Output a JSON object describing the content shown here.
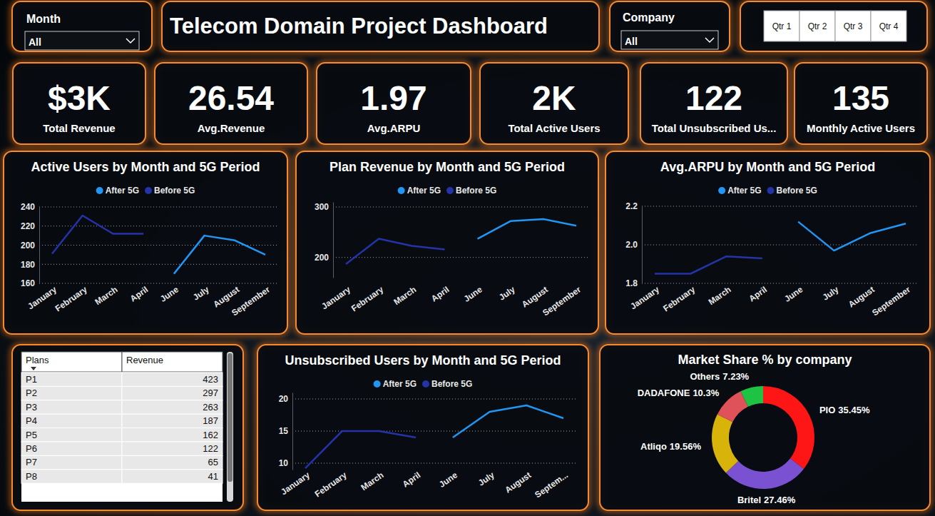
{
  "header": {
    "title": "Telecom Domain Project Dashboard"
  },
  "filters": [
    {
      "label": "Month",
      "value": "All"
    },
    {
      "label": "Company",
      "value": "All"
    }
  ],
  "quarters": [
    "Qtr 1",
    "Qtr 2",
    "Qtr 3",
    "Qtr 4"
  ],
  "kpis": [
    {
      "value": "$3K",
      "label": "Total Revenue"
    },
    {
      "value": "26.54",
      "label": "Avg.Revenue"
    },
    {
      "value": "1.97",
      "label": "Avg.ARPU"
    },
    {
      "value": "2K",
      "label": "Total Active Users"
    },
    {
      "value": "122",
      "label": "Total Unsubscribed Us..."
    },
    {
      "value": "135",
      "label": "Monthly Active Users"
    }
  ],
  "table": {
    "columns": [
      "Plans",
      "Revenue"
    ],
    "rows": [
      [
        "P1",
        423
      ],
      [
        "P2",
        297
      ],
      [
        "P3",
        263
      ],
      [
        "P4",
        187
      ],
      [
        "P5",
        162
      ],
      [
        "P6",
        122
      ],
      [
        "P7",
        65
      ],
      [
        "P8",
        41
      ]
    ]
  },
  "chart_data": [
    {
      "type": "line",
      "title": "Active Users by Month and 5G Period",
      "categories": [
        "January",
        "February",
        "March",
        "April",
        "June",
        "July",
        "August",
        "September"
      ],
      "series": [
        {
          "name": "After 5G",
          "color": "#2196f3",
          "values": [
            null,
            null,
            null,
            null,
            170,
            210,
            205,
            190
          ]
        },
        {
          "name": "Before 5G",
          "color": "#2433a6",
          "values": [
            191,
            231,
            212,
            212,
            null,
            null,
            null,
            null
          ]
        }
      ],
      "ylim": [
        160,
        240
      ],
      "yticks": [
        160,
        180,
        200,
        220,
        240
      ],
      "grid": true,
      "legend": "top"
    },
    {
      "type": "line",
      "title": "Plan Revenue by Month and 5G Period",
      "categories": [
        "January",
        "February",
        "March",
        "April",
        "June",
        "July",
        "August",
        "September"
      ],
      "series": [
        {
          "name": "After 5G",
          "color": "#2196f3",
          "values": [
            null,
            null,
            null,
            null,
            237,
            272,
            276,
            263
          ]
        },
        {
          "name": "Before 5G",
          "color": "#2433a6",
          "values": [
            187,
            237,
            223,
            216,
            null,
            null,
            null,
            null
          ]
        }
      ],
      "ylim": [
        160,
        310
      ],
      "yticks": [
        200,
        300
      ],
      "grid": true,
      "legend": "top"
    },
    {
      "type": "line",
      "title": "Avg.ARPU by Month and 5G Period",
      "categories": [
        "January",
        "February",
        "March",
        "April",
        "June",
        "July",
        "August",
        "September"
      ],
      "series": [
        {
          "name": "After 5G",
          "color": "#2196f3",
          "values": [
            null,
            null,
            null,
            null,
            2.12,
            1.97,
            2.06,
            2.11
          ]
        },
        {
          "name": "Before 5G",
          "color": "#2433a6",
          "values": [
            1.85,
            1.85,
            1.94,
            1.93,
            null,
            null,
            null,
            null
          ]
        }
      ],
      "ylim": [
        1.8,
        2.2
      ],
      "yticks": [
        1.8,
        {
          "value": 2,
          "label": "2.0"
        },
        2.2
      ],
      "grid": true,
      "legend": "top"
    },
    {
      "type": "line",
      "title": "Unsubscribed Users by Month and 5G Period",
      "categories": [
        "January",
        "February",
        "March",
        "April",
        "June",
        "July",
        "August",
        "Septem..."
      ],
      "series": [
        {
          "name": "After 5G",
          "color": "#2196f3",
          "values": [
            null,
            null,
            null,
            null,
            14,
            18,
            19,
            17
          ]
        },
        {
          "name": "Before 5G",
          "color": "#2433a6",
          "values": [
            9.2,
            15,
            15,
            14,
            null,
            null,
            null,
            null
          ]
        }
      ],
      "ylim": [
        9,
        21
      ],
      "yticks": [
        10,
        15,
        20
      ],
      "grid": true,
      "legend": "top"
    },
    {
      "type": "pie",
      "title": "Market Share % by company",
      "categories": [
        "PIO",
        "Britel",
        "Atliqo",
        "DADAFONE",
        "Others"
      ],
      "values": [
        35.45,
        27.46,
        19.56,
        10.3,
        7.23
      ],
      "value_labels": [
        "35.45%",
        "27.46%",
        "19.56%",
        "10.3%",
        "7.23%"
      ],
      "colors": [
        "#fe1515",
        "#7a52d1",
        "#d8b30a",
        "#e0525a",
        "#1fc243"
      ],
      "data_labels": true
    }
  ]
}
